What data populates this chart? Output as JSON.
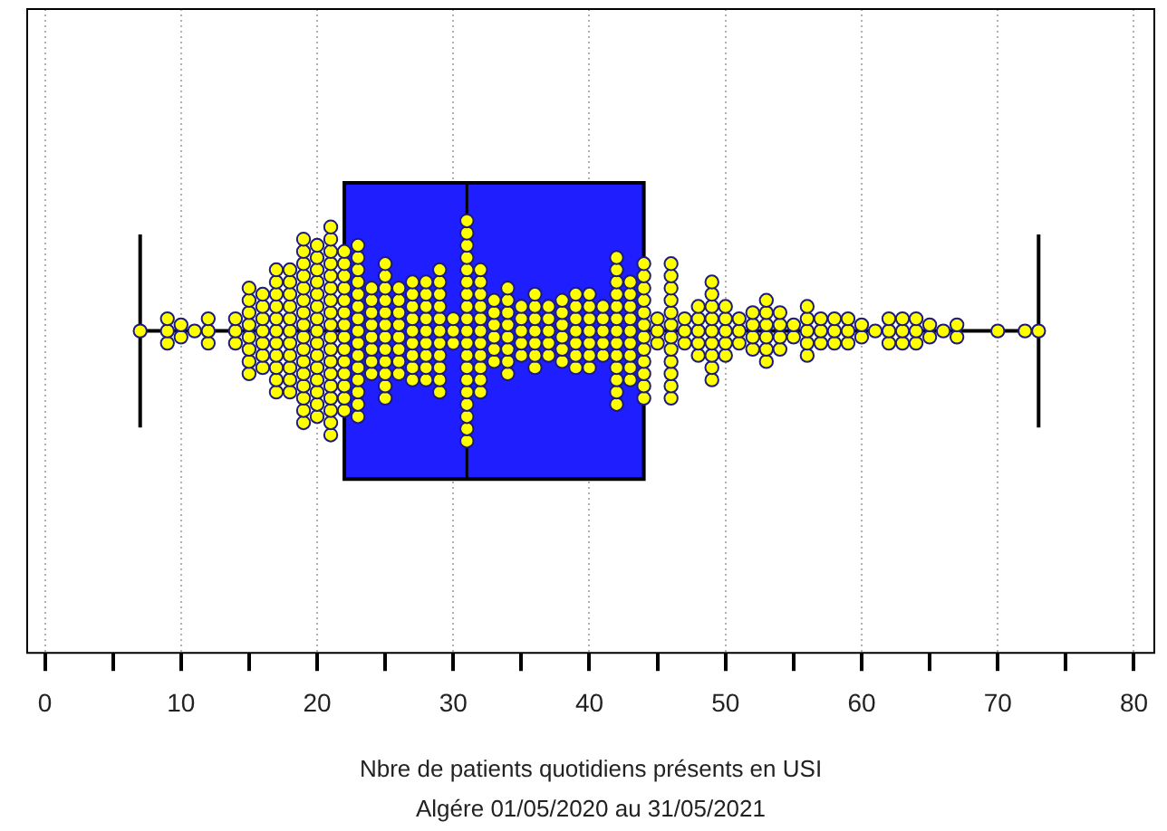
{
  "chart_data": {
    "type": "box",
    "orientation": "horizontal",
    "categories": [
      null
    ],
    "color": "#1e1eff",
    "boxes": [
      {
        "low": 7,
        "q1": 22,
        "median": 31,
        "q3": 44,
        "high": 73
      }
    ],
    "series": [
      {
        "type": "scatter",
        "color": "#ffff00",
        "x": [
          null,
          null,
          null,
          null,
          null,
          null,
          null,
          null,
          null,
          null,
          null,
          null,
          null,
          null,
          null,
          null,
          null,
          null,
          null,
          null,
          null,
          null,
          null,
          null,
          null,
          null,
          null,
          null,
          null,
          null,
          null,
          null,
          null,
          null,
          null,
          null,
          null,
          null,
          null,
          null,
          null,
          null,
          null,
          null,
          null,
          null,
          null,
          null,
          null,
          null,
          null,
          null,
          null,
          null,
          null,
          null,
          null,
          null,
          null,
          null,
          null,
          null,
          null,
          null,
          null,
          null,
          null,
          null,
          null,
          null,
          null,
          null,
          null,
          null,
          null,
          null,
          null,
          null,
          null,
          null,
          null,
          null,
          null,
          null,
          null,
          null,
          null,
          null,
          null,
          null,
          null,
          null,
          null,
          null,
          null,
          null,
          null,
          null,
          null,
          null,
          null,
          null,
          null,
          null,
          null,
          null,
          null,
          null,
          null,
          null,
          null,
          null,
          null,
          null,
          null,
          null,
          null,
          null,
          null,
          null,
          null,
          null,
          null,
          null,
          null,
          null,
          null,
          null,
          null,
          null,
          null,
          null,
          null,
          null,
          null,
          null,
          null,
          null,
          null,
          null,
          null,
          null,
          null,
          null,
          null,
          null,
          null,
          null,
          null,
          null,
          null,
          null,
          null,
          null,
          null,
          null,
          null,
          null,
          null,
          null,
          null,
          null,
          null,
          null,
          null,
          null,
          null,
          null,
          null,
          null,
          null,
          null,
          null,
          null,
          null,
          null,
          null,
          null,
          null,
          null,
          null,
          null,
          null,
          null,
          null,
          null,
          null,
          null,
          null,
          null,
          null,
          null,
          null,
          null,
          null,
          null,
          null,
          null,
          null,
          null,
          null,
          null,
          null,
          null,
          null,
          null,
          null,
          null,
          null,
          null,
          null,
          null,
          null,
          null,
          null,
          null,
          null,
          null,
          null,
          null,
          null,
          null,
          null,
          null,
          null,
          null,
          null,
          null,
          null,
          null,
          null,
          null,
          null,
          null,
          null,
          null,
          null,
          null,
          null,
          null,
          null,
          null,
          null,
          null,
          null,
          null,
          null,
          null,
          null,
          null,
          null,
          null,
          null,
          null,
          null,
          null,
          null,
          null,
          null,
          null,
          null,
          null,
          null,
          null,
          null,
          null,
          null,
          null,
          null,
          null,
          null,
          null,
          null,
          null,
          null,
          null,
          null,
          null,
          null,
          null,
          null,
          null,
          null,
          null,
          null,
          null,
          null,
          null,
          null,
          null,
          null,
          null,
          null,
          null,
          null,
          null,
          null,
          null,
          null,
          null,
          null,
          null,
          null,
          null,
          null,
          null,
          null,
          null,
          null,
          null,
          null,
          null,
          null,
          null,
          null,
          null,
          null,
          null,
          null,
          null,
          null,
          null,
          null,
          null,
          null,
          null,
          null,
          null,
          null,
          null,
          null,
          null,
          null,
          null,
          null,
          null,
          null,
          null,
          null,
          null,
          null,
          null,
          null,
          null,
          null,
          null,
          null,
          null,
          null,
          null,
          null,
          null,
          null,
          null,
          null,
          null,
          null,
          null,
          null,
          null,
          null,
          null,
          null,
          null,
          null,
          null,
          null,
          null,
          null,
          null,
          null,
          null,
          null,
          null,
          null,
          null,
          null,
          null,
          null,
          null,
          null,
          null,
          null,
          null,
          null,
          null,
          null,
          null,
          null,
          null,
          null,
          null,
          null,
          null,
          null,
          null,
          null,
          null
        ],
        "values": [
          7,
          9,
          9,
          9,
          10,
          10,
          11,
          12,
          12,
          12,
          14,
          14,
          14,
          15,
          15,
          15,
          15,
          15,
          15,
          15,
          15,
          16,
          16,
          16,
          16,
          16,
          16,
          16,
          17,
          17,
          17,
          17,
          17,
          17,
          17,
          17,
          17,
          17,
          17,
          18,
          18,
          18,
          18,
          18,
          18,
          18,
          18,
          18,
          18,
          18,
          19,
          19,
          19,
          19,
          19,
          19,
          19,
          19,
          19,
          19,
          19,
          19,
          19,
          19,
          19,
          19,
          20,
          20,
          20,
          20,
          20,
          20,
          20,
          20,
          20,
          20,
          20,
          20,
          20,
          20,
          20,
          21,
          21,
          21,
          21,
          21,
          21,
          21,
          21,
          21,
          21,
          21,
          21,
          21,
          21,
          21,
          21,
          21,
          21,
          22,
          22,
          22,
          22,
          22,
          22,
          22,
          22,
          22,
          22,
          22,
          22,
          22,
          22,
          23,
          23,
          23,
          23,
          23,
          23,
          23,
          23,
          23,
          23,
          23,
          23,
          23,
          23,
          23,
          24,
          24,
          24,
          24,
          24,
          24,
          24,
          24,
          25,
          25,
          25,
          25,
          25,
          25,
          25,
          25,
          25,
          25,
          25,
          25,
          26,
          26,
          26,
          26,
          26,
          26,
          26,
          26,
          27,
          27,
          27,
          27,
          27,
          27,
          27,
          27,
          27,
          28,
          28,
          28,
          28,
          28,
          28,
          28,
          28,
          28,
          29,
          29,
          29,
          29,
          29,
          29,
          29,
          29,
          29,
          29,
          29,
          30,
          30,
          30,
          31,
          31,
          31,
          31,
          31,
          31,
          31,
          31,
          31,
          31,
          31,
          31,
          31,
          31,
          31,
          31,
          31,
          31,
          31,
          32,
          32,
          32,
          32,
          32,
          32,
          32,
          32,
          32,
          32,
          32,
          33,
          33,
          33,
          33,
          33,
          33,
          34,
          34,
          34,
          34,
          34,
          34,
          34,
          34,
          35,
          35,
          35,
          35,
          35,
          36,
          36,
          36,
          36,
          36,
          36,
          36,
          37,
          37,
          37,
          37,
          37,
          38,
          38,
          38,
          38,
          38,
          38,
          39,
          39,
          39,
          39,
          39,
          39,
          39,
          40,
          40,
          40,
          40,
          40,
          40,
          40,
          41,
          41,
          41,
          41,
          41,
          42,
          42,
          42,
          42,
          42,
          42,
          42,
          42,
          42,
          42,
          42,
          42,
          42,
          43,
          43,
          43,
          43,
          43,
          43,
          43,
          43,
          43,
          44,
          44,
          44,
          44,
          44,
          44,
          44,
          44,
          44,
          44,
          44,
          44,
          45,
          45,
          45,
          46,
          46,
          46,
          46,
          46,
          46,
          46,
          46,
          46,
          46,
          46,
          46,
          47,
          47,
          47,
          48,
          48,
          48,
          48,
          48,
          49,
          49,
          49,
          49,
          49,
          49,
          49,
          49,
          49,
          50,
          50,
          50,
          50,
          50,
          51,
          51,
          51,
          52,
          52,
          52,
          52,
          53,
          53,
          53,
          53,
          53,
          53,
          54,
          54,
          54,
          54,
          55,
          55,
          56,
          56,
          56,
          56,
          56,
          57,
          57,
          57,
          58,
          58,
          58,
          59,
          59,
          59,
          60,
          60,
          61,
          62,
          62,
          62,
          63,
          63,
          63,
          64,
          64,
          64,
          65,
          65,
          66,
          67,
          67,
          70,
          72,
          73
        ]
      }
    ],
    "xlim": [
      -1.3,
      81.5
    ],
    "xticks": [
      0,
      {
        "value": 5,
        "label": null
      },
      10,
      {
        "value": 15,
        "label": null
      },
      20,
      {
        "value": 25,
        "label": null
      },
      30,
      {
        "value": 35,
        "label": null
      },
      40,
      {
        "value": 45,
        "label": null
      },
      50,
      {
        "value": 55,
        "label": null
      },
      60,
      {
        "value": 65,
        "label": null
      },
      70,
      {
        "value": 75,
        "label": null
      },
      80
    ],
    "grid": "x",
    "marker": "circle",
    "tick_labels": "x",
    "xlabel": "Nbre de patients quotidiens présents en USI",
    "annotations": [
      "Algére 01/05/2020 au 31/05/2021"
    ]
  }
}
